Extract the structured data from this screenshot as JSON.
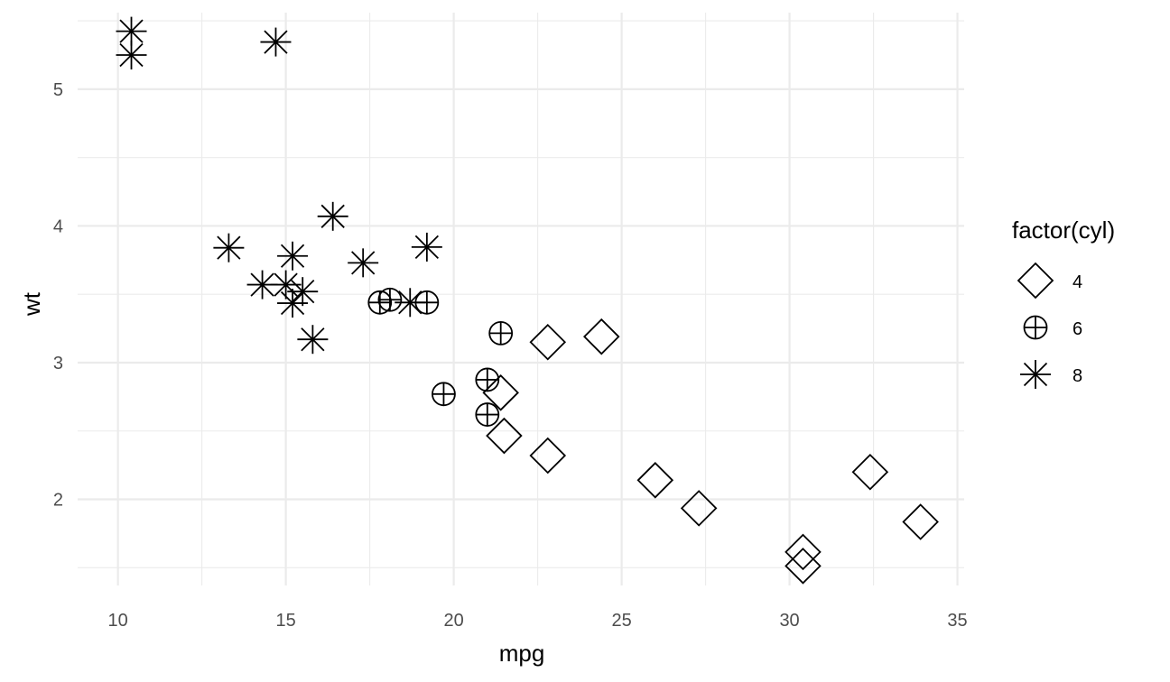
{
  "chart_data": {
    "type": "scatter",
    "title": "",
    "xlabel": "mpg",
    "ylabel": "wt",
    "xlim": [
      8.8,
      35.2
    ],
    "ylim": [
      1.37,
      5.56
    ],
    "x_ticks": [
      10,
      15,
      20,
      25,
      30,
      35
    ],
    "y_ticks": [
      2,
      3,
      4,
      5
    ],
    "x_tick_labels": [
      "10",
      "15",
      "20",
      "25",
      "30",
      "35"
    ],
    "y_tick_labels": [
      "2",
      "3",
      "4",
      "5"
    ],
    "grid": true,
    "background": "#ffffff",
    "gridline_color": "#ebebeb",
    "marker_color": "#000000",
    "legend": {
      "title": "factor(cyl)",
      "position": "right",
      "entries": [
        {
          "label": "4",
          "shape": "diamond"
        },
        {
          "label": "6",
          "shape": "circle-plus"
        },
        {
          "label": "8",
          "shape": "asterisk"
        }
      ]
    },
    "series": [
      {
        "name": "4",
        "shape": "diamond",
        "points": [
          {
            "x": 22.8,
            "y": 2.32
          },
          {
            "x": 24.4,
            "y": 3.19
          },
          {
            "x": 22.8,
            "y": 3.15
          },
          {
            "x": 32.4,
            "y": 2.2
          },
          {
            "x": 30.4,
            "y": 1.615
          },
          {
            "x": 33.9,
            "y": 1.835
          },
          {
            "x": 21.5,
            "y": 2.465
          },
          {
            "x": 27.3,
            "y": 1.935
          },
          {
            "x": 26.0,
            "y": 2.14
          },
          {
            "x": 30.4,
            "y": 1.513
          },
          {
            "x": 21.4,
            "y": 2.78
          }
        ]
      },
      {
        "name": "6",
        "shape": "circle-plus",
        "points": [
          {
            "x": 21.0,
            "y": 2.62
          },
          {
            "x": 21.0,
            "y": 2.875
          },
          {
            "x": 21.4,
            "y": 3.215
          },
          {
            "x": 18.1,
            "y": 3.46
          },
          {
            "x": 19.2,
            "y": 3.44
          },
          {
            "x": 17.8,
            "y": 3.44
          },
          {
            "x": 19.7,
            "y": 2.77
          }
        ]
      },
      {
        "name": "8",
        "shape": "asterisk",
        "points": [
          {
            "x": 18.7,
            "y": 3.44
          },
          {
            "x": 14.3,
            "y": 3.57
          },
          {
            "x": 16.4,
            "y": 4.07
          },
          {
            "x": 17.3,
            "y": 3.73
          },
          {
            "x": 15.2,
            "y": 3.78
          },
          {
            "x": 10.4,
            "y": 5.25
          },
          {
            "x": 10.4,
            "y": 5.424
          },
          {
            "x": 14.7,
            "y": 5.345
          },
          {
            "x": 15.5,
            "y": 3.52
          },
          {
            "x": 15.2,
            "y": 3.435
          },
          {
            "x": 13.3,
            "y": 3.84
          },
          {
            "x": 19.2,
            "y": 3.845
          },
          {
            "x": 15.8,
            "y": 3.17
          },
          {
            "x": 15.0,
            "y": 3.57
          }
        ]
      }
    ]
  }
}
